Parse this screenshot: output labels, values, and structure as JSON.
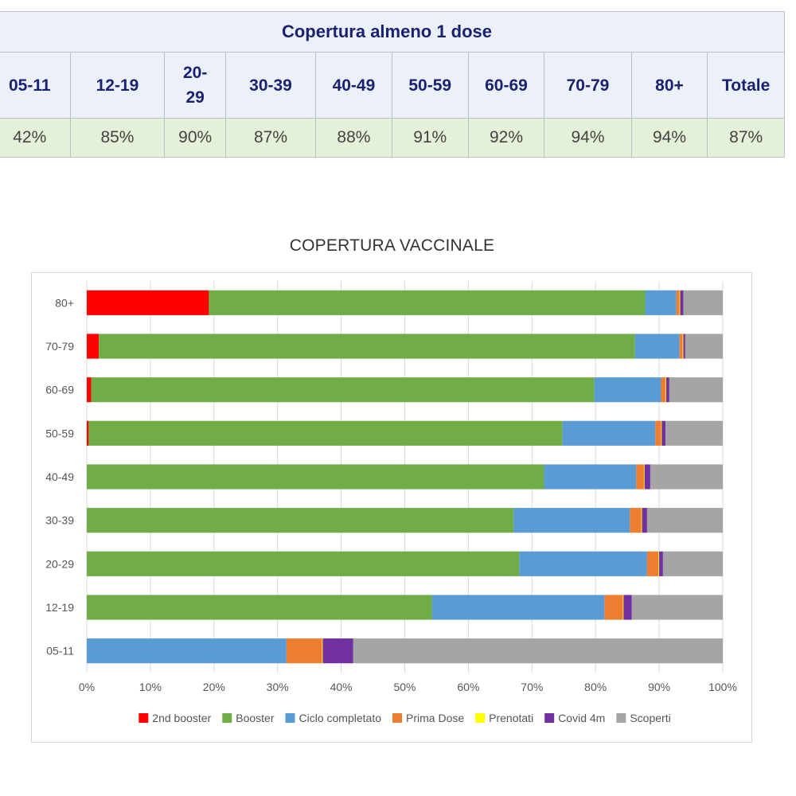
{
  "table": {
    "title": "Copertura almeno 1 dose",
    "headers": [
      "05-11",
      "12-19",
      "20-\n29",
      "30-39",
      "40-49",
      "50-59",
      "60-69",
      "70-79",
      "80+",
      "Totale"
    ],
    "values": [
      "42%",
      "85%",
      "90%",
      "87%",
      "88%",
      "91%",
      "92%",
      "94%",
      "94%",
      "87%"
    ]
  },
  "chart_data": {
    "type": "bar",
    "orientation": "horizontal",
    "stacked": true,
    "percent_stacked": true,
    "title": "COPERTURA VACCINALE",
    "xlabel": "",
    "ylabel": "",
    "xlim": [
      0,
      100
    ],
    "x_ticks": [
      "0%",
      "10%",
      "20%",
      "30%",
      "40%",
      "50%",
      "60%",
      "70%",
      "80%",
      "90%",
      "100%"
    ],
    "grid": "vertical",
    "legend_position": "bottom",
    "categories": [
      "80+",
      "70-79",
      "60-69",
      "50-59",
      "40-49",
      "30-39",
      "20-29",
      "12-19",
      "05-11"
    ],
    "series": [
      {
        "name": "2nd booster",
        "color": "#ff0000",
        "values": [
          19.2,
          1.9,
          0.7,
          0.3,
          0,
          0,
          0,
          0,
          0
        ]
      },
      {
        "name": "Booster",
        "color": "#70ad47",
        "values": [
          68.6,
          84.3,
          79.1,
          74.5,
          71.9,
          67.1,
          68.0,
          54.3,
          0
        ]
      },
      {
        "name": "Ciclo completato",
        "color": "#5b9bd5",
        "values": [
          4.9,
          7.0,
          10.5,
          14.6,
          14.5,
          18.3,
          20.1,
          27.1,
          31.4
        ]
      },
      {
        "name": "Prima Dose",
        "color": "#ed7d31",
        "values": [
          0.5,
          0.5,
          0.7,
          0.9,
          1.2,
          1.8,
          1.8,
          2.9,
          5.6
        ]
      },
      {
        "name": "Prenotati",
        "color": "#ffff00",
        "values": [
          0.1,
          0.1,
          0.1,
          0.1,
          0.1,
          0.1,
          0.1,
          0.1,
          0.1
        ]
      },
      {
        "name": "Covid 4m",
        "color": "#7030a0",
        "values": [
          0.5,
          0.3,
          0.5,
          0.6,
          0.9,
          0.8,
          0.6,
          1.3,
          4.8
        ]
      },
      {
        "name": "Scoperti",
        "color": "#a5a5a5",
        "values": [
          6.2,
          5.9,
          8.4,
          9.0,
          11.4,
          11.9,
          9.4,
          14.3,
          58.1
        ]
      }
    ]
  }
}
